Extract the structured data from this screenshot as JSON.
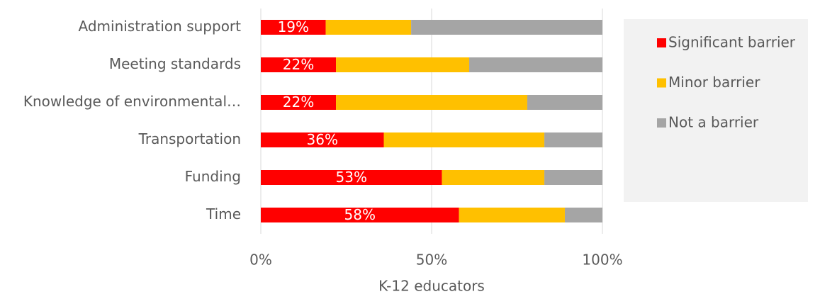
{
  "chart_data": {
    "type": "stacked_barh",
    "categories": [
      "Administration support",
      "Meeting standards",
      "Knowledge of environmental…",
      "Transportation",
      "Funding",
      "Time"
    ],
    "series": [
      {
        "name": "Significant barrier",
        "color": "#ff0000",
        "values": [
          19,
          22,
          22,
          36,
          53,
          58
        ],
        "value_labels": [
          "19%",
          "22%",
          "22%",
          "36%",
          "53%",
          "58%"
        ]
      },
      {
        "name": "Minor barrier",
        "color": "#ffc000",
        "values": [
          25,
          39,
          56,
          47,
          30,
          31
        ]
      },
      {
        "name": "Not a barrier",
        "color": "#a5a5a5",
        "values": [
          56,
          39,
          22,
          17,
          17,
          11
        ]
      }
    ],
    "xlim": [
      0,
      100
    ],
    "xticks": [
      {
        "value": 0,
        "label": "0%"
      },
      {
        "value": 50,
        "label": "50%"
      },
      {
        "value": 100,
        "label": "100%"
      }
    ],
    "xlabel": "K-12 educators",
    "grid": true,
    "legend": "right"
  }
}
